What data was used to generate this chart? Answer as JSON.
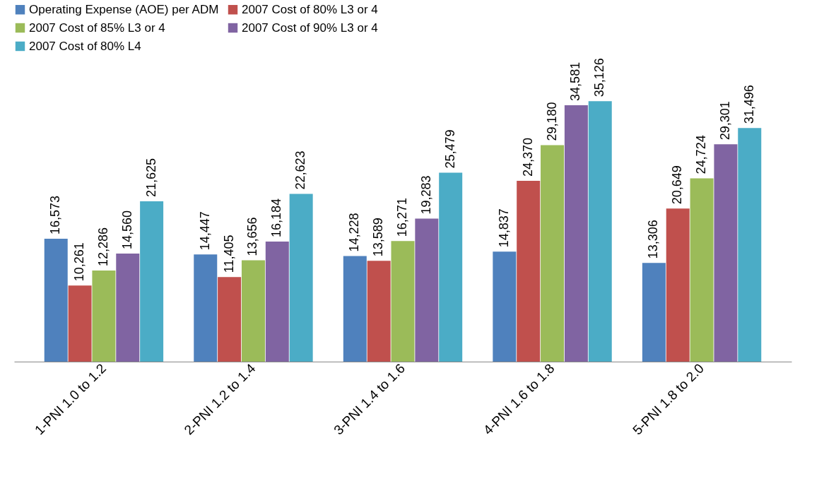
{
  "chart_data": {
    "type": "bar",
    "categories": [
      "1-PNI 1.0 to 1.2",
      "2-PNI 1.2 to 1.4",
      "3-PNI 1.4 to 1.6",
      "4-PNI 1.6 to 1.8",
      "5-PNI 1.8 to 2.0"
    ],
    "series": [
      {
        "name": "Operating Expense (AOE) per ADM",
        "color": "#4f81bd",
        "values": [
          16573,
          14447,
          14228,
          14837,
          13306
        ],
        "value_labels": [
          "16,573",
          "14,447",
          "14,228",
          "14,837",
          "13,306"
        ]
      },
      {
        "name": "2007 Cost of 80% L3 or 4",
        "color": "#c0504d",
        "values": [
          10261,
          11405,
          13589,
          24370,
          20649
        ],
        "value_labels": [
          "10,261",
          "11,405",
          "13,589",
          "24,370",
          "20,649"
        ]
      },
      {
        "name": "2007 Cost of 85% L3 or 4",
        "color": "#9bbb59",
        "values": [
          12286,
          13656,
          16271,
          29180,
          24724
        ],
        "value_labels": [
          "12,286",
          "13,656",
          "16,271",
          "29,180",
          "24,724"
        ]
      },
      {
        "name": "2007 Cost of 90% L3 or 4",
        "color": "#8064a2",
        "values": [
          14560,
          16184,
          19283,
          34581,
          29301
        ],
        "value_labels": [
          "14,560",
          "16,184",
          "19,283",
          "34,581",
          "29,301"
        ]
      },
      {
        "name": "2007 Cost of 80% L4",
        "color": "#4bacc6",
        "values": [
          21625,
          22623,
          25479,
          35126,
          31496
        ],
        "value_labels": [
          "21,625",
          "22,623",
          "25,479",
          "35,126",
          "31,496"
        ]
      }
    ],
    "legend": "top",
    "grid": false
  }
}
